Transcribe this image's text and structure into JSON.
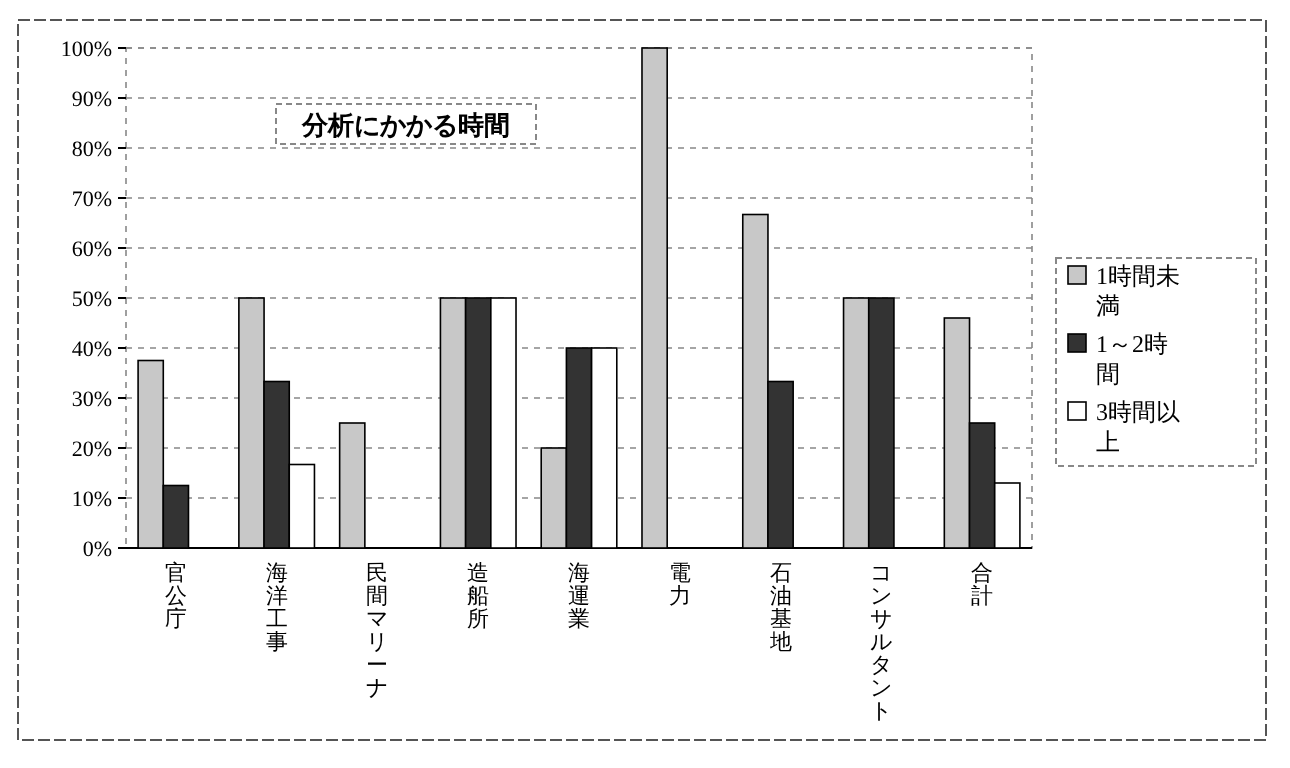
{
  "chart_data": {
    "type": "bar",
    "title": "分析にかかる時間",
    "categories": [
      "官公庁",
      "海洋工事",
      "民間マリーナ",
      "造船所",
      "海運業",
      "電力",
      "石油基地",
      "コンサルタント",
      "合計"
    ],
    "series": [
      {
        "name": "1時間未満",
        "color": "#c8c8c8",
        "values": [
          37.5,
          50,
          25,
          50,
          20,
          100,
          66.7,
          50,
          46
        ]
      },
      {
        "name": "1～2時間",
        "color": "#333333",
        "values": [
          12.5,
          33.3,
          0,
          50,
          40,
          0,
          33.3,
          50,
          25
        ]
      },
      {
        "name": "3時間以上",
        "color": "#ffffff",
        "values": [
          0,
          16.7,
          0,
          50,
          40,
          0,
          0,
          0,
          13
        ]
      }
    ],
    "ylim": [
      0,
      100
    ],
    "yticks": [
      {
        "value": 0,
        "label": "0%"
      },
      {
        "value": 10,
        "label": "10%"
      },
      {
        "value": 20,
        "label": "20%"
      },
      {
        "value": 30,
        "label": "30%"
      },
      {
        "value": 40,
        "label": "40%"
      },
      {
        "value": 50,
        "label": "50%"
      },
      {
        "value": 60,
        "label": "60%"
      },
      {
        "value": 70,
        "label": "70%"
      },
      {
        "value": 80,
        "label": "80%"
      },
      {
        "value": 90,
        "label": "90%"
      },
      {
        "value": 100,
        "label": "100%"
      }
    ],
    "grid": "y",
    "legend": "right"
  }
}
